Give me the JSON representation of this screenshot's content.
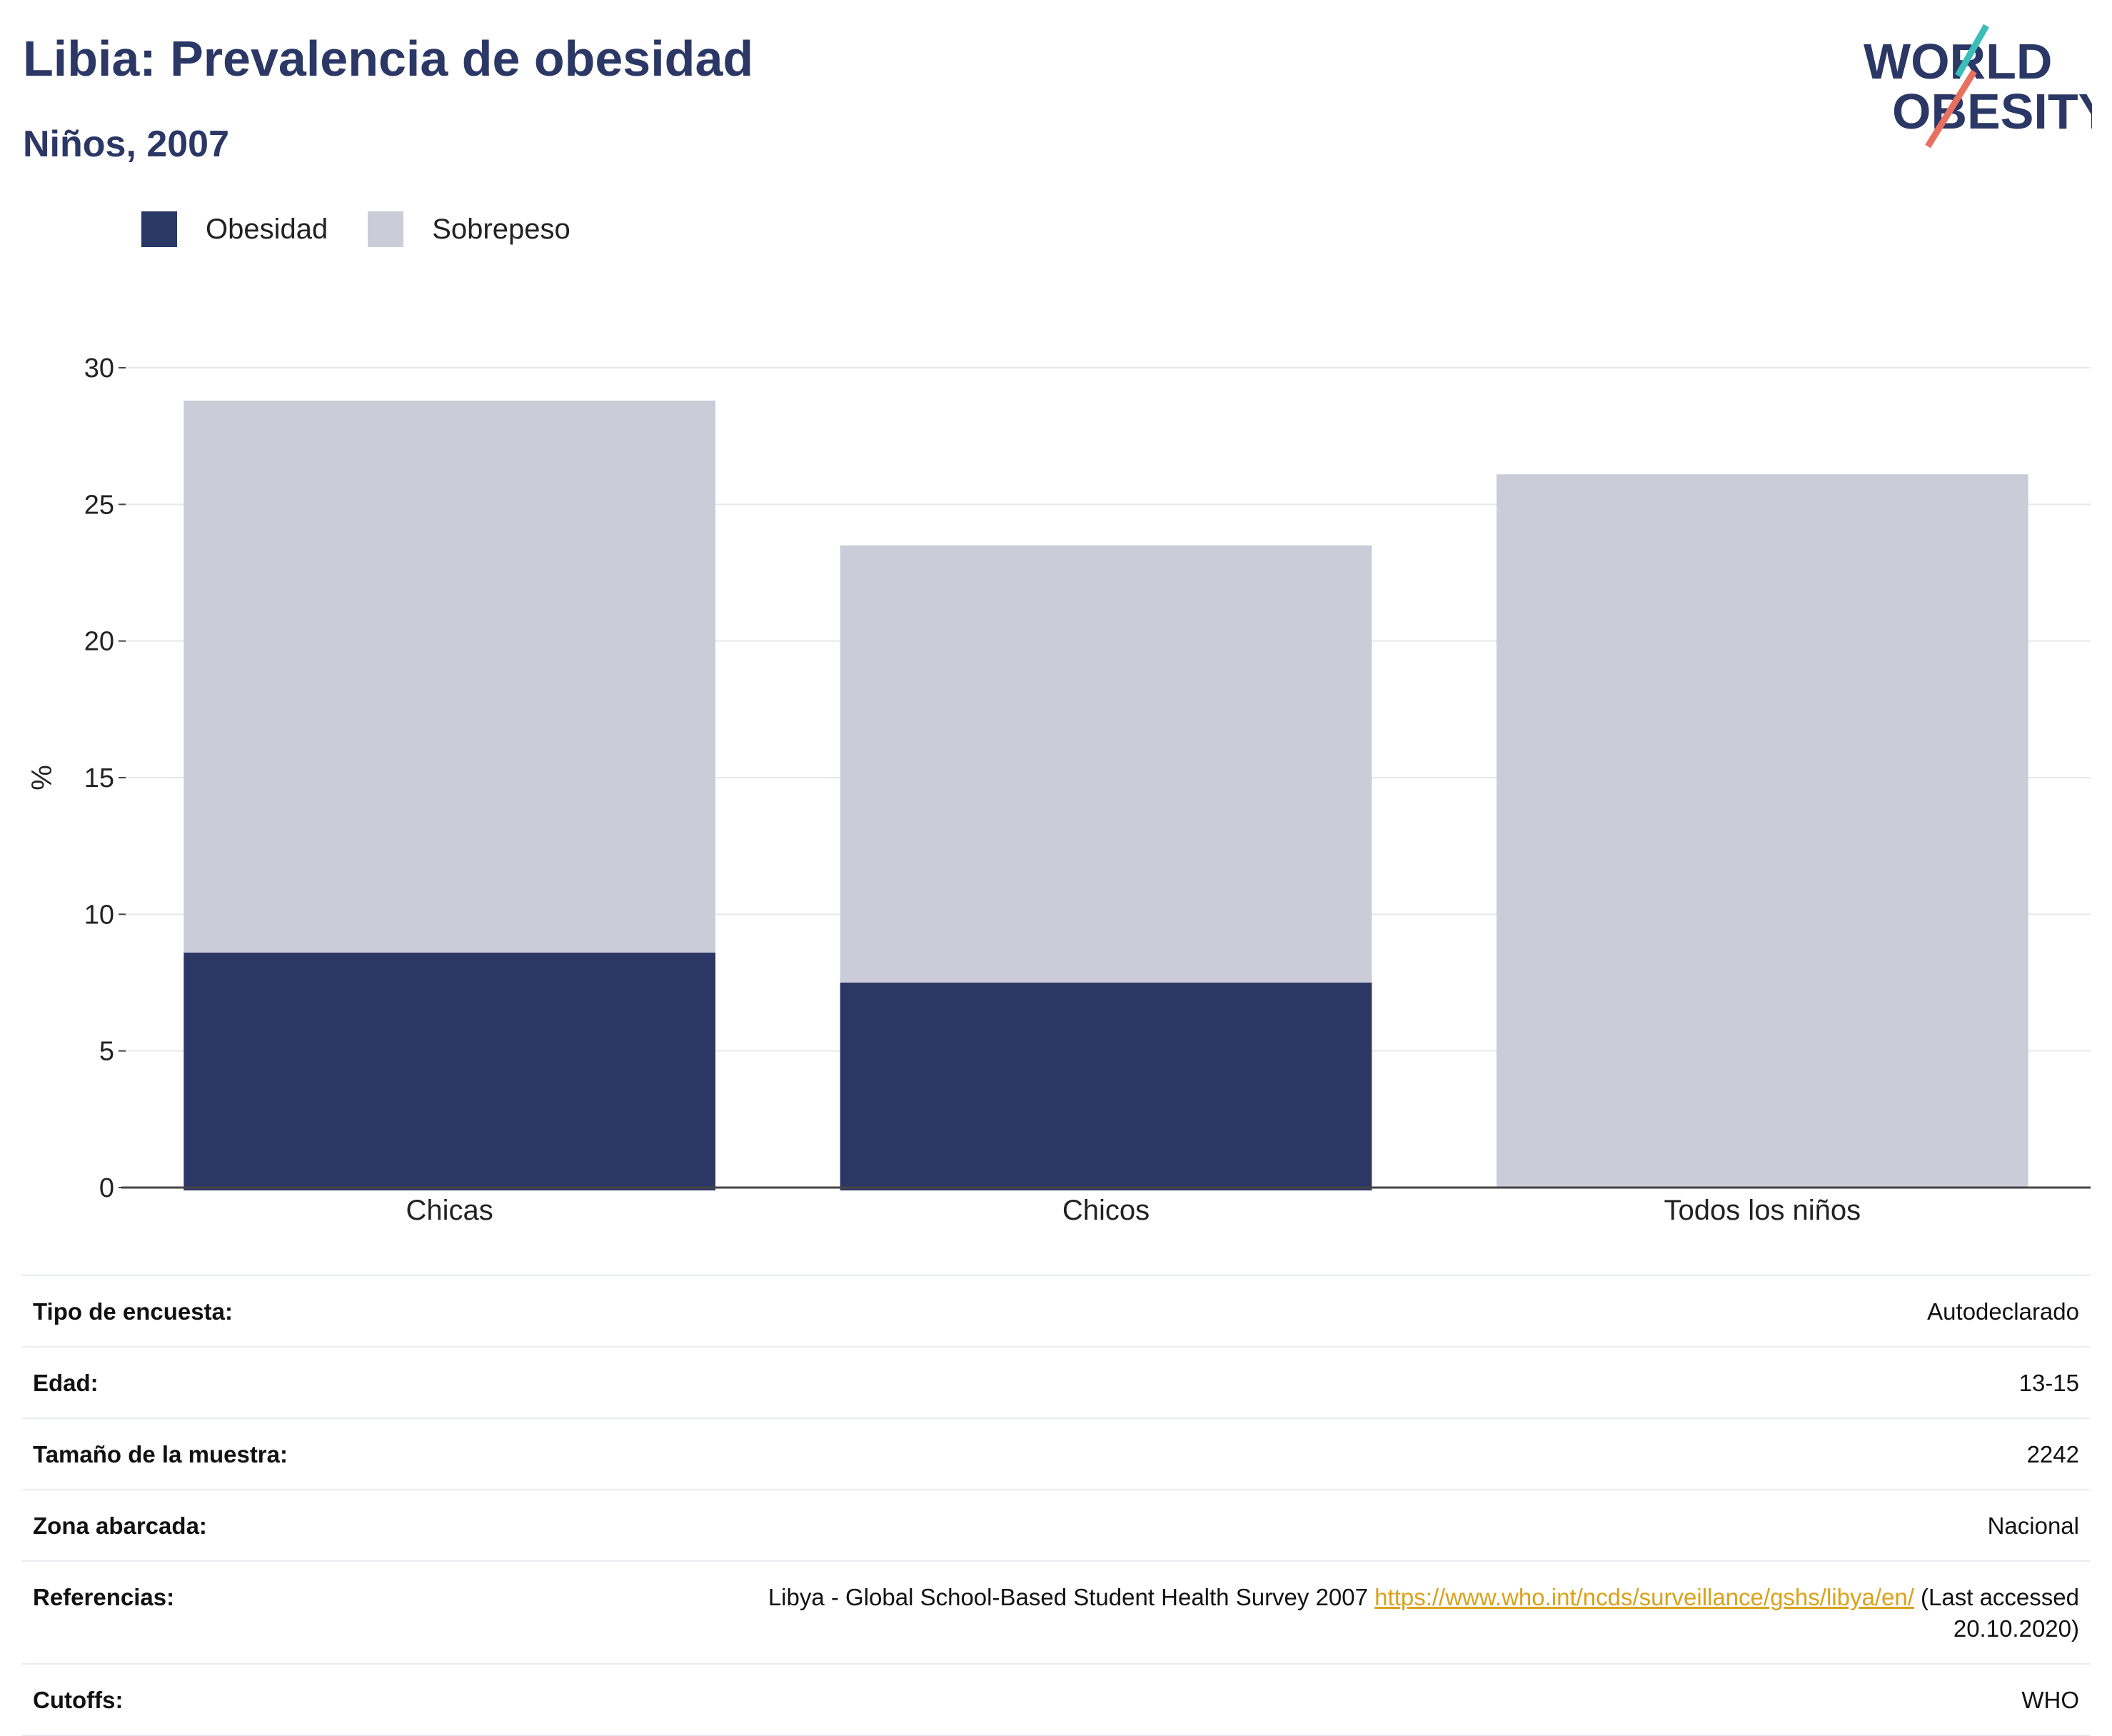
{
  "header": {
    "title": "Libia: Prevalencia de obesidad",
    "subtitle": "Niños, 2007"
  },
  "logo": {
    "line1": "WORLD",
    "line2": "OBESITY"
  },
  "colors": {
    "obesity": "#2b3765",
    "overweight": "#cbccd7",
    "text": "#2b3765",
    "link": "#d9a21b"
  },
  "chart_data": {
    "type": "bar",
    "stacked": true,
    "categories": [
      "Chicas",
      "Chicos",
      "Todos los niños"
    ],
    "series": [
      {
        "name": "Obesidad",
        "values": [
          8.6,
          7.5,
          0
        ]
      },
      {
        "name": "Sobrepeso",
        "values": [
          20.2,
          16.0,
          26.1
        ]
      }
    ],
    "ylabel": "%",
    "ylim": [
      0,
      30
    ],
    "yticks": [
      0,
      5,
      10,
      15,
      20,
      25,
      30
    ],
    "grid": true,
    "legend_position": "top-left"
  },
  "info": {
    "rows": [
      {
        "key": "Tipo de encuesta:",
        "value": "Autodeclarado"
      },
      {
        "key": "Edad:",
        "value": "13-15"
      },
      {
        "key": "Tamaño de la muestra:",
        "value": "2242"
      },
      {
        "key": "Zona abarcada:",
        "value": "Nacional"
      }
    ],
    "references_key": "Referencias:",
    "references_text": "Libya - Global School-Based Student Health Survey 2007 ",
    "references_link": "https://www.who.int/ncds/surveillance/gshs/libya/en/",
    "references_suffix": " (Last accessed 20.10.2020)",
    "cutoffs_key": "Cutoffs:",
    "cutoffs_value": "WHO"
  }
}
